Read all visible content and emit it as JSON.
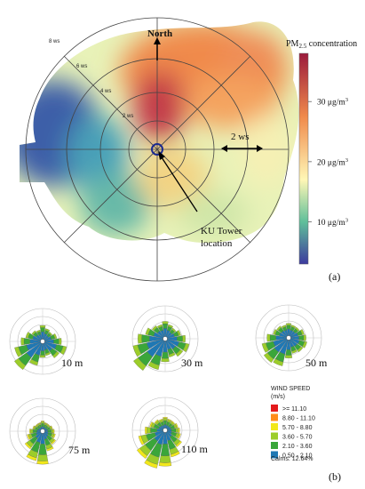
{
  "colors": {
    "cbar_top": "#9b1b3c",
    "cbar_mid_hi": "#f08a4b",
    "cbar_mid": "#fff7b6",
    "cbar_mid_lo": "#5fbf9a",
    "cbar_bottom": "#3d3a9e",
    "bins": [
      "#e41a1c",
      "#ff8c1a",
      "#f2e81a",
      "#9ccd2a",
      "#3aa63a",
      "#1f78b4"
    ]
  },
  "panel_a": {
    "north_label": "North",
    "ws_label": "2 ws",
    "ring_labels": [
      "2 ws",
      "4 ws",
      "6 ws",
      "8 ws"
    ],
    "colorbar_title_main": "PM",
    "colorbar_title_sub": "2.5",
    "colorbar_title_rest": " concentration",
    "colorbar_ticks": [
      {
        "value": 30,
        "prefix": "30 μg/m",
        "sup": "3"
      },
      {
        "value": 20,
        "prefix": "20 μg/m",
        "sup": "3"
      },
      {
        "value": 10,
        "prefix": "10 μg/m",
        "sup": "3"
      }
    ],
    "tower_label_line1": "KU Tower",
    "tower_label_line2": "location",
    "panel_label": "(a)"
  },
  "panel_b": {
    "panel_label": "(b)",
    "legend_title_line1": "WIND SPEED",
    "legend_title_line2": "(m/s)",
    "legend_bins": [
      ">= 11.10",
      "8.80 - 11.10",
      "5.70 - 8.80",
      "3.60 - 5.70",
      "2.10 - 3.60",
      "0.50 - 2.10"
    ],
    "calms": "Calms: 12.64%"
  },
  "chart_data": [
    {
      "type": "heatmap",
      "kind": "polar pollution rose",
      "title": "PM2.5 concentration",
      "colorbar_ticks": [
        10,
        20,
        30
      ],
      "colorbar_unit": "μg/m3",
      "radial_unit": "ws",
      "radial_ticks": [
        2,
        4,
        6,
        8
      ],
      "annotations": [
        "North",
        "2 ws",
        "KU Tower location"
      ]
    },
    {
      "type": "wind rose",
      "heights": [
        "10 m",
        "30 m",
        "50 m",
        "75 m",
        "110 m"
      ],
      "speed_bins_ms": [
        ">= 11.10",
        "8.80 - 11.10",
        "5.70 - 8.80",
        "3.60 - 5.70",
        "2.10 - 3.60",
        "0.50 - 2.10"
      ],
      "calms_percent": 12.64
    }
  ]
}
